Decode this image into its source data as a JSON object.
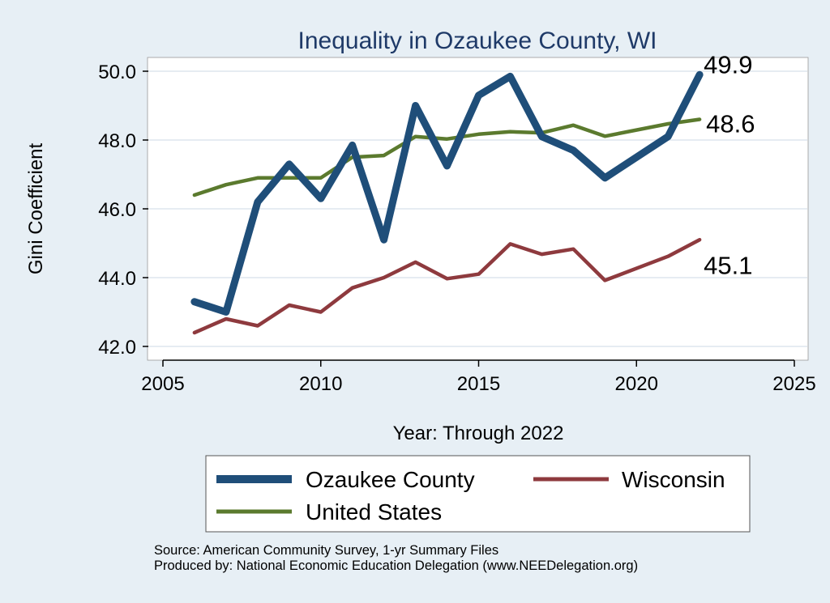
{
  "chart_data": {
    "type": "line",
    "title": "Inequality in Ozaukee County, WI",
    "xlabel": "Year: Through 2022",
    "ylabel": "Gini Coefficient",
    "xlim": [
      2005,
      2025
    ],
    "ylim": [
      42.0,
      50.0
    ],
    "x_ticks": [
      2005,
      2010,
      2015,
      2020,
      2025
    ],
    "x_tick_labels": [
      "2005",
      "2010",
      "2015",
      "2020",
      "2025"
    ],
    "y_ticks": [
      42.0,
      44.0,
      46.0,
      48.0,
      50.0
    ],
    "y_tick_labels": [
      "42.0",
      "44.0",
      "46.0",
      "48.0",
      "50.0"
    ],
    "x": [
      2006,
      2007,
      2008,
      2009,
      2010,
      2011,
      2012,
      2013,
      2014,
      2015,
      2016,
      2017,
      2018,
      2019,
      2021,
      2022
    ],
    "series": [
      {
        "name": "Ozaukee County",
        "color": "#1f4e79",
        "values": [
          43.3,
          43.0,
          46.2,
          47.3,
          46.3,
          47.85,
          45.1,
          49.0,
          47.25,
          49.3,
          49.85,
          48.1,
          47.7,
          46.9,
          48.1,
          49.9
        ],
        "end_label": "49.9"
      },
      {
        "name": "Wisconsin",
        "color": "#8e3a3e",
        "values": [
          42.4,
          42.8,
          42.6,
          43.2,
          43.0,
          43.7,
          44.0,
          44.45,
          43.97,
          44.1,
          44.98,
          44.68,
          44.83,
          43.92,
          44.62,
          45.1
        ],
        "end_label": "45.1"
      },
      {
        "name": "United States",
        "color": "#5b7a2e",
        "values": [
          46.4,
          46.7,
          46.9,
          46.9,
          46.9,
          47.5,
          47.55,
          48.1,
          48.03,
          48.17,
          48.24,
          48.21,
          48.43,
          48.11,
          48.47,
          48.6
        ],
        "end_label": "48.6"
      }
    ],
    "grid": true,
    "legend_position": "bottom"
  },
  "source_line": "Source: American Community Survey, 1-yr Summary Files",
  "produced_line": "Produced by: National Economic Education Delegation (www.NEEDelegation.org)"
}
